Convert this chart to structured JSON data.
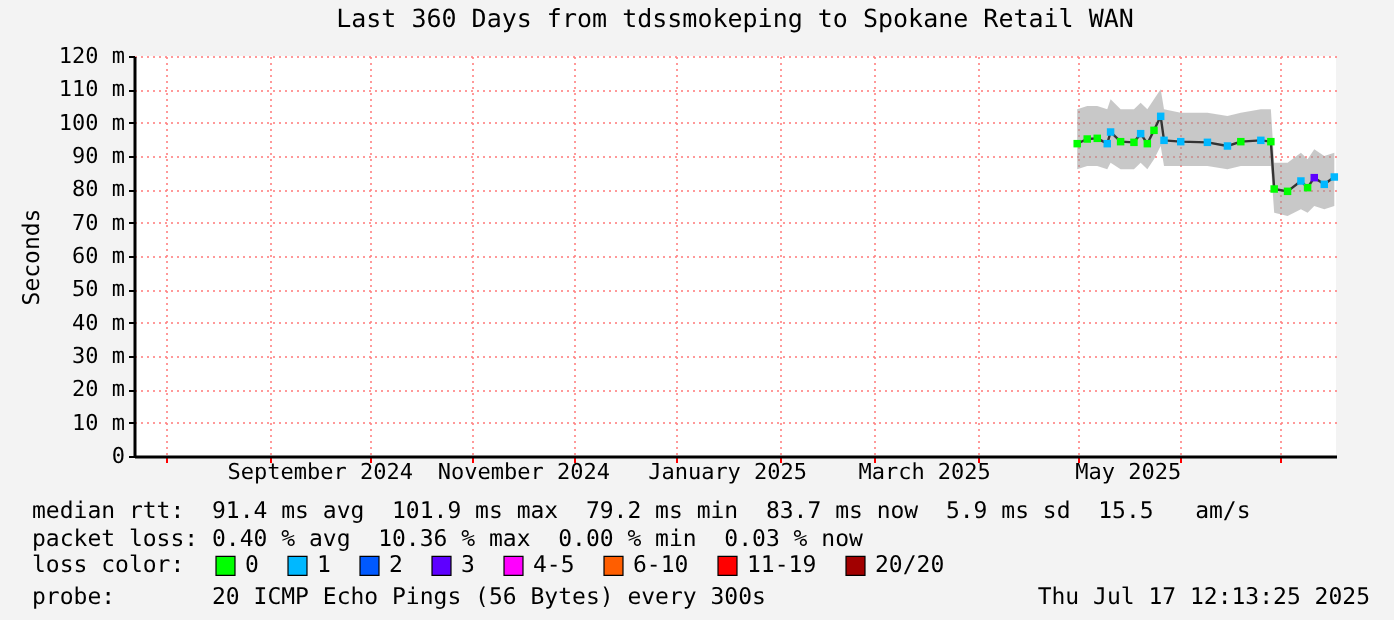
{
  "chart_data": {
    "type": "scatter",
    "title": "Last 360 Days from tdssmokeping to Spokane Retail WAN",
    "ylabel": "Seconds",
    "legend_title": "loss color:",
    "legend": "bottom",
    "grid": true,
    "xlim": [
      "2024-07-22T12:13",
      "2025-07-17T12:13"
    ],
    "xticks": [
      {
        "value": "2024-08-01",
        "label": null
      },
      {
        "value": "2024-09-01",
        "label": null
      },
      {
        "value": "2024-09-16",
        "label": "September 2024"
      },
      {
        "value": "2024-10-01",
        "label": null
      },
      {
        "value": "2024-11-01",
        "label": null
      },
      {
        "value": "2024-11-16",
        "label": "November 2024"
      },
      {
        "value": "2024-12-01",
        "label": null
      },
      {
        "value": "2025-01-01",
        "label": null
      },
      {
        "value": "2025-01-16",
        "label": "January 2025"
      },
      {
        "value": "2025-02-01",
        "label": null
      },
      {
        "value": "2025-03-01",
        "label": null
      },
      {
        "value": "2025-03-16",
        "label": "March 2025"
      },
      {
        "value": "2025-04-01",
        "label": null
      },
      {
        "value": "2025-05-01",
        "label": null
      },
      {
        "value": "2025-05-16",
        "label": "May 2025"
      },
      {
        "value": "2025-06-01",
        "label": null
      },
      {
        "value": "2025-07-01",
        "label": null
      }
    ],
    "ylim": [
      0,
      120
    ],
    "yticks": [
      0,
      {
        "value": 10,
        "label": "10 m"
      },
      {
        "value": 20,
        "label": "20 m"
      },
      {
        "value": 30,
        "label": "30 m"
      },
      {
        "value": 40,
        "label": "40 m"
      },
      {
        "value": 50,
        "label": "50 m"
      },
      {
        "value": 60,
        "label": "60 m"
      },
      {
        "value": 70,
        "label": "70 m"
      },
      {
        "value": 80,
        "label": "80 m"
      },
      {
        "value": 90,
        "label": "90 m"
      },
      {
        "value": 100,
        "label": "100 m"
      },
      {
        "value": 110,
        "label": "110 m"
      },
      {
        "value": 120,
        "label": "120 m"
      }
    ],
    "x": [
      "2025-05-01",
      "2025-05-04",
      "2025-05-07",
      "2025-05-10",
      "2025-05-11",
      "2025-05-14",
      "2025-05-18",
      "2025-05-20",
      "2025-05-22",
      "2025-05-24",
      "2025-05-26",
      "2025-05-27",
      "2025-06-01",
      "2025-06-09",
      "2025-06-15",
      "2025-06-19",
      "2025-06-25",
      "2025-06-28",
      "2025-06-29",
      "2025-07-03",
      "2025-07-07",
      "2025-07-09",
      "2025-07-11",
      "2025-07-14",
      "2025-07-17"
    ],
    "series": [
      {
        "type": "line",
        "color": "#333333",
        "values": [
          93.7,
          95.1,
          95.3,
          93.7,
          97.2,
          94.3,
          94.1,
          96.7,
          93.7,
          97.7,
          101.9,
          94.7,
          94.3,
          94.1,
          93.0,
          94.3,
          94.7,
          94.3,
          80.1,
          79.4,
          82.5,
          80.5,
          83.5,
          81.5,
          83.7
        ],
        "lower": [
          86,
          87,
          87,
          86,
          88,
          86,
          86,
          88,
          86,
          89,
          93,
          87,
          87,
          87,
          86,
          87,
          87,
          87,
          73,
          72,
          74,
          73,
          75,
          74,
          75
        ],
        "upper": [
          104,
          105,
          105,
          104,
          107,
          104,
          104,
          106,
          104,
          107,
          110,
          104,
          103,
          103,
          102,
          103,
          104,
          104,
          88,
          88,
          91,
          89,
          92,
          90,
          91
        ]
      },
      {
        "name": "0",
        "color": "#00ff00",
        "marker": "square",
        "values": [
          93.7,
          95.1,
          95.3,
          null,
          null,
          94.3,
          94.1,
          null,
          93.7,
          97.7,
          null,
          null,
          null,
          null,
          null,
          94.3,
          null,
          94.3,
          80.1,
          79.4,
          null,
          80.5,
          null,
          null,
          null
        ]
      },
      {
        "name": "1",
        "color": "#00b8ff",
        "values": [
          null,
          null,
          null,
          93.7,
          97.2,
          null,
          null,
          96.7,
          null,
          null,
          101.9,
          94.7,
          94.3,
          94.1,
          93.0,
          null,
          94.7,
          null,
          null,
          null,
          82.5,
          null,
          null,
          81.5,
          83.7
        ]
      },
      {
        "name": "2",
        "color": "#0059ff",
        "values": [
          null,
          null,
          null,
          null,
          null,
          null,
          null,
          null,
          null,
          null,
          null,
          null,
          null,
          null,
          null,
          null,
          null,
          null,
          null,
          null,
          null,
          null,
          null,
          null,
          null
        ]
      },
      {
        "name": "3",
        "color": "#5e00ff",
        "values": [
          null,
          null,
          null,
          null,
          null,
          null,
          null,
          null,
          null,
          null,
          null,
          null,
          null,
          null,
          null,
          null,
          null,
          null,
          null,
          null,
          null,
          null,
          83.5,
          null,
          null
        ]
      },
      {
        "name": "4-5",
        "color": "#ff00fe",
        "values": [
          null,
          null,
          null,
          null,
          null,
          null,
          null,
          null,
          null,
          null,
          null,
          null,
          null,
          null,
          null,
          null,
          null,
          null,
          null,
          null,
          null,
          null,
          null,
          null,
          null
        ]
      },
      {
        "name": "6-10",
        "color": "#ff5e00",
        "values": [
          null,
          null,
          null,
          null,
          null,
          null,
          null,
          null,
          null,
          null,
          null,
          null,
          null,
          null,
          null,
          null,
          null,
          null,
          null,
          null,
          null,
          null,
          null,
          null,
          null
        ]
      },
      {
        "name": "11-19",
        "color": "#ff0000",
        "values": [
          null,
          null,
          null,
          null,
          null,
          null,
          null,
          null,
          null,
          null,
          null,
          null,
          null,
          null,
          null,
          null,
          null,
          null,
          null,
          null,
          null,
          null,
          null,
          null,
          null
        ]
      },
      {
        "name": "20/20",
        "color": "#a10000",
        "values": [
          null,
          null,
          null,
          null,
          null,
          null,
          null,
          null,
          null,
          null,
          null,
          null,
          null,
          null,
          null,
          null,
          null,
          null,
          null,
          null,
          null,
          null,
          null,
          null,
          null
        ]
      }
    ],
    "annotations": [
      "median rtt:  91.4 ms avg  101.9 ms max  79.2 ms min  83.7 ms now  5.9 ms sd  15.5   am/s",
      "packet loss: 0.40 % avg  10.36 % max  0.00 % min  0.03 % now",
      "probe:       20 ICMP Echo Pings (56 Bytes) every 300s",
      "Thu Jul 17 12:13:25 2025"
    ]
  }
}
